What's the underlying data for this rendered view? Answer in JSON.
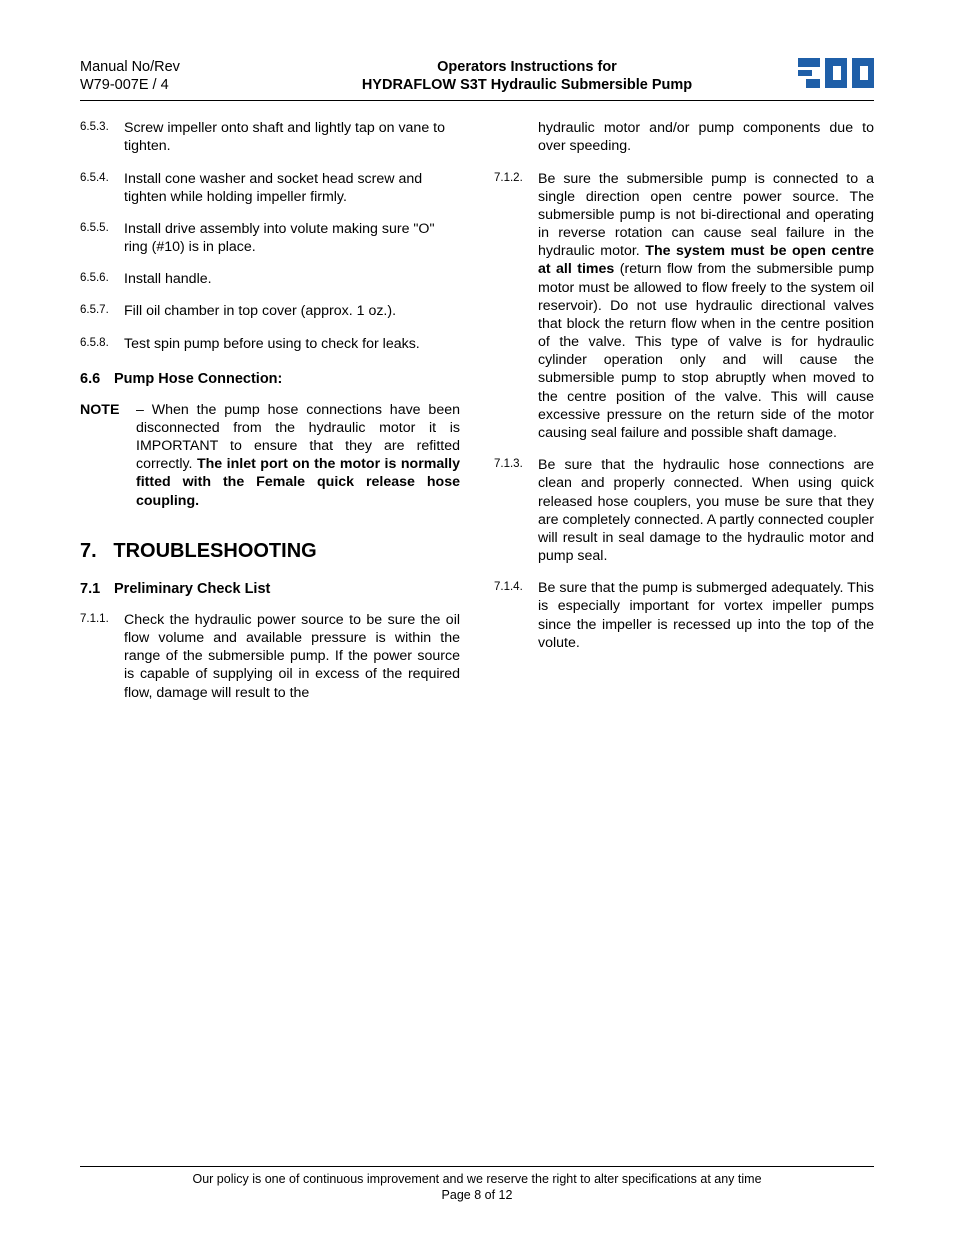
{
  "header": {
    "manual_no_line1": "Manual No/Rev",
    "manual_no_line2": "W79-007E / 4",
    "title_line1": "Operators Instructions for",
    "title_line2": "HYDRAFLOW S3T Hydraulic Submersible Pump"
  },
  "logo": {
    "fill": "#1f5fa8",
    "name": "spp-logo"
  },
  "left_column": {
    "items_65": [
      {
        "num": "6.5.3.",
        "text": "Screw impeller onto shaft and lightly tap on vane to tighten."
      },
      {
        "num": "6.5.4.",
        "text": "Install cone washer and socket head screw and tighten while holding impeller firmly."
      },
      {
        "num": "6.5.5.",
        "text": "Install drive assembly into volute making sure \"O\" ring (#10) is in place."
      },
      {
        "num": "6.5.6.",
        "text": "Install handle."
      },
      {
        "num": "6.5.7.",
        "text": "Fill oil chamber in top cover (approx. 1 oz.)."
      },
      {
        "num": "6.5.8.",
        "text": "Test spin pump before using to check for leaks."
      }
    ],
    "subhead_66_num": "6.6",
    "subhead_66_text": "Pump Hose Connection:",
    "note_label": "NOTE",
    "note_dash": " – ",
    "note_text_1": "When the pump hose connections have been disconnected from the hydraulic motor it is IMPORTANT to ensure that they are refitted correctly.  ",
    "note_text_bold": "The inlet port on the motor is normally fitted with the Female quick release hose coupling.",
    "h1_num": "7.",
    "h1_text": "TROUBLESHOOTING",
    "subhead_71_num": "7.1",
    "subhead_71_text": "Preliminary Check List",
    "item_711_num": "7.1.1.",
    "item_711_text": "Check the hydraulic power source to be sure the oil flow volume and available pressure is within the range of the submersible pump.  If the power source is capable of supplying oil in excess of the required flow, damage will result to the"
  },
  "right_column": {
    "cont_711": "hydraulic motor and/or pump components due to over speeding.",
    "item_712_num": "7.1.2.",
    "item_712_a": "Be sure the submersible pump is connected to a single direction open centre power source.  The submersible pump is not bi-directional and operating in reverse rotation can cause seal failure in the hydraulic motor. ",
    "item_712_bold": "The system must be open centre at all times",
    "item_712_b": " (return flow from the submersible pump motor must be allowed to flow freely to the system oil reservoir).  Do not use hydraulic directional valves that block the return flow when in the centre position of the valve.  This type of valve is for hydraulic cylinder operation only and will cause the submersible pump to stop abruptly when moved to the centre position of the valve.  This will cause excessive pressure on the return side of the motor causing seal failure and possible shaft damage.",
    "item_713_num": "7.1.3.",
    "item_713_text": "Be sure that the hydraulic hose connections are clean and properly connected.  When using quick released hose couplers, you muse be sure that they are completely connected.  A partly connected coupler will result in seal damage to the hydraulic motor and pump seal.",
    "item_714_num": "7.1.4.",
    "item_714_text": "Be sure that the pump is submerged adequately.  This is especially important for vortex impeller pumps since the impeller is recessed up into the top of the volute."
  },
  "footer": {
    "line1": "Our policy is one of continuous improvement and we reserve the right to alter specifications at any time",
    "line2": "Page 8 of 12"
  }
}
